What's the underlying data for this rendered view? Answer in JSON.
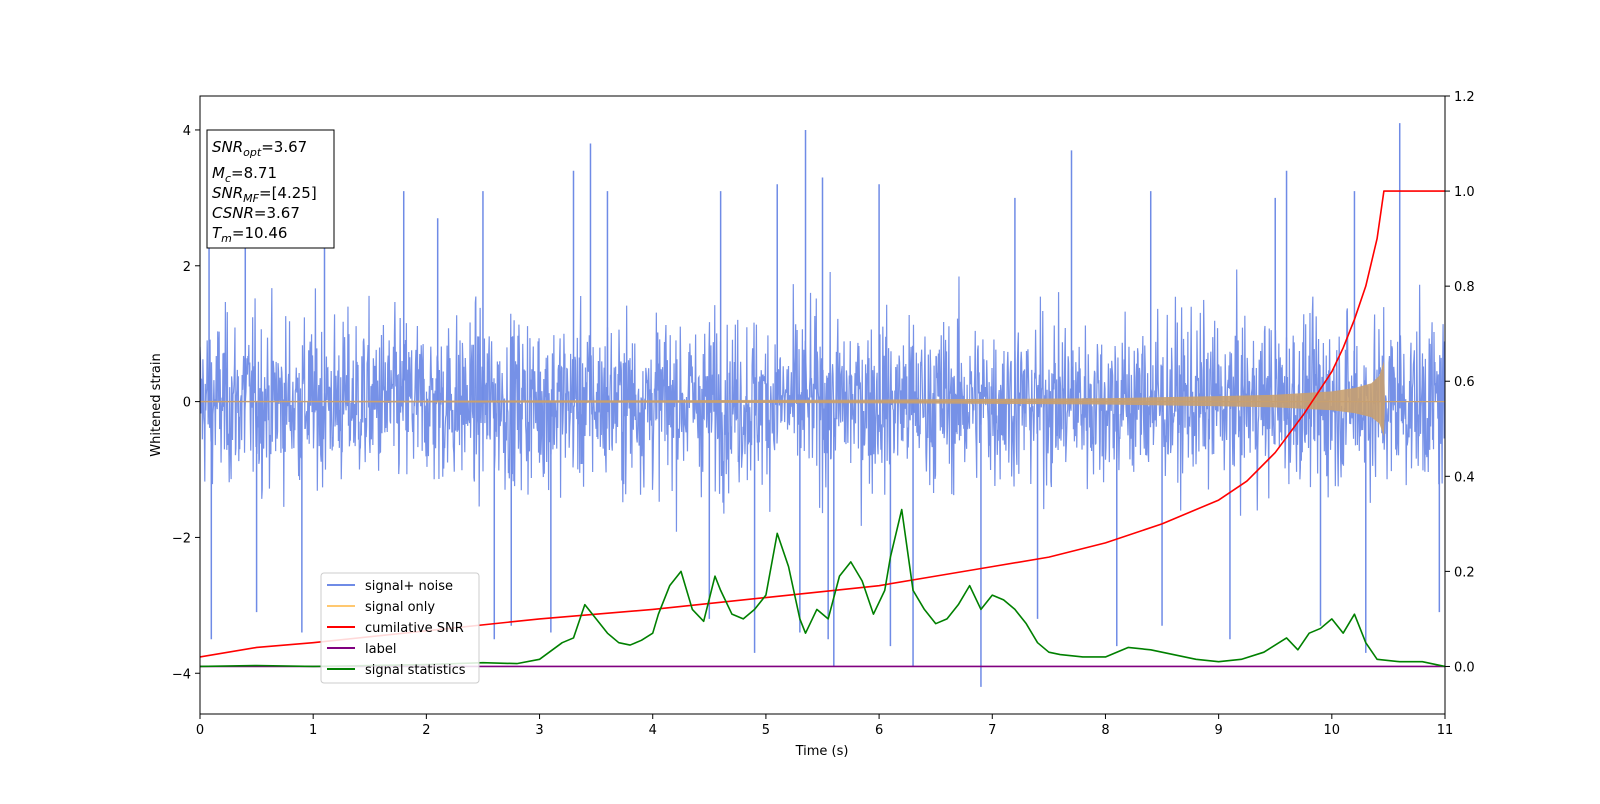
{
  "chart_data": {
    "type": "line",
    "title": "",
    "xlabel": "Time (s)",
    "ylabel": "Whitened strain",
    "y2label": "",
    "xlim": [
      0,
      11
    ],
    "ylim": [
      -4.6,
      4.5
    ],
    "y2lim": [
      -0.1,
      1.2
    ],
    "x_ticks": [
      0,
      1,
      2,
      3,
      4,
      5,
      6,
      7,
      8,
      9,
      10,
      11
    ],
    "y_ticks": [
      -4,
      -2,
      0,
      2,
      4
    ],
    "y2_ticks": [
      0.0,
      0.2,
      0.4,
      0.6,
      0.8,
      1.0,
      1.2
    ],
    "x_tick_labels": [
      "0",
      "1",
      "2",
      "3",
      "4",
      "5",
      "6",
      "7",
      "8",
      "9",
      "10",
      "11"
    ],
    "y_tick_labels": [
      "−4",
      "−2",
      "0",
      "2",
      "4"
    ],
    "y2_tick_labels": [
      "0.0",
      "0.2",
      "0.4",
      "0.6",
      "0.8",
      "1.0",
      "1.2"
    ],
    "grid": false,
    "legend_position": "lower-left",
    "colors": {
      "signal_noise": "#6f8be6",
      "signal_only": "#c8a070",
      "cumulative_snr": "#ff0000",
      "label": "#800080",
      "signal_statistics": "#008000"
    },
    "stats_box": {
      "snr_opt": {
        "main": "SNR",
        "sub": "opt",
        "value": "=3.67"
      },
      "mc": {
        "main": "M",
        "sub": "c",
        "value": "=8.71"
      },
      "snr_mf": {
        "main": "SNR",
        "sub": "MF",
        "value": "=[4.25]"
      },
      "csnr": {
        "main": "CSNR",
        "value": "=3.67"
      },
      "tm": {
        "main": "T",
        "sub": "m",
        "value": "=10.46"
      }
    },
    "series": [
      {
        "name": "signal+ noise",
        "axis": "left",
        "kind": "noise-band",
        "band_sd": 1.1,
        "spikes": [
          [
            0.08,
            2.5
          ],
          [
            0.1,
            -3.5
          ],
          [
            0.4,
            2.6
          ],
          [
            0.5,
            -3.1
          ],
          [
            0.9,
            -3.4
          ],
          [
            1.1,
            3.0
          ],
          [
            1.8,
            3.1
          ],
          [
            2.1,
            2.7
          ],
          [
            2.5,
            3.1
          ],
          [
            2.6,
            -3.5
          ],
          [
            2.75,
            -3.3
          ],
          [
            3.1,
            -3.4
          ],
          [
            3.3,
            3.4
          ],
          [
            3.45,
            3.8
          ],
          [
            3.6,
            3.1
          ],
          [
            4.5,
            -3.2
          ],
          [
            4.6,
            3.1
          ],
          [
            4.9,
            -3.7
          ],
          [
            5.1,
            3.2
          ],
          [
            5.3,
            -3.4
          ],
          [
            5.35,
            4.0
          ],
          [
            5.5,
            3.3
          ],
          [
            5.55,
            -3.5
          ],
          [
            5.6,
            -3.9
          ],
          [
            6.0,
            3.2
          ],
          [
            6.1,
            -3.6
          ],
          [
            6.3,
            -3.9
          ],
          [
            6.9,
            -4.2
          ],
          [
            7.2,
            3.0
          ],
          [
            7.4,
            -3.2
          ],
          [
            7.7,
            3.7
          ],
          [
            8.1,
            -3.6
          ],
          [
            8.4,
            3.1
          ],
          [
            8.5,
            -3.3
          ],
          [
            9.1,
            -3.5
          ],
          [
            9.5,
            3.0
          ],
          [
            9.6,
            3.4
          ],
          [
            9.9,
            -3.3
          ],
          [
            10.2,
            3.1
          ],
          [
            10.3,
            -3.7
          ],
          [
            10.6,
            4.1
          ],
          [
            10.95,
            -3.1
          ]
        ]
      },
      {
        "name": "signal only",
        "axis": "left",
        "kind": "chirp-envelope",
        "x": [
          0,
          1,
          2,
          3,
          4,
          5,
          6,
          7,
          8,
          9,
          9.5,
          10,
          10.2,
          10.35,
          10.42,
          10.46,
          10.47,
          11
        ],
        "amplitude": [
          0.01,
          0.01,
          0.015,
          0.02,
          0.02,
          0.025,
          0.03,
          0.04,
          0.05,
          0.08,
          0.1,
          0.15,
          0.2,
          0.27,
          0.38,
          0.6,
          0.0,
          0.0
        ]
      },
      {
        "name": "cumilative SNR",
        "axis": "right",
        "x": [
          0,
          0.5,
          1,
          2,
          3,
          4,
          5,
          6,
          6.5,
          7,
          7.5,
          8,
          8.5,
          9,
          9.25,
          9.5,
          9.75,
          10,
          10.1,
          10.2,
          10.3,
          10.35,
          10.4,
          10.43,
          10.46,
          11
        ],
        "values": [
          0.02,
          0.04,
          0.05,
          0.075,
          0.1,
          0.12,
          0.145,
          0.17,
          0.19,
          0.21,
          0.23,
          0.26,
          0.3,
          0.35,
          0.39,
          0.45,
          0.53,
          0.62,
          0.67,
          0.73,
          0.8,
          0.85,
          0.9,
          0.95,
          1.0,
          1.0
        ]
      },
      {
        "name": "label",
        "axis": "right",
        "x": [
          0,
          11
        ],
        "values": [
          0.0,
          0.0
        ]
      },
      {
        "name": "signal statistics",
        "axis": "right",
        "x": [
          0,
          0.5,
          1,
          1.5,
          2,
          2.5,
          2.8,
          3,
          3.2,
          3.3,
          3.4,
          3.5,
          3.6,
          3.7,
          3.8,
          3.9,
          4.0,
          4.05,
          4.15,
          4.25,
          4.35,
          4.45,
          4.55,
          4.6,
          4.7,
          4.8,
          4.9,
          5.0,
          5.1,
          5.2,
          5.3,
          5.35,
          5.45,
          5.55,
          5.65,
          5.75,
          5.85,
          5.95,
          6.05,
          6.1,
          6.2,
          6.3,
          6.4,
          6.5,
          6.6,
          6.7,
          6.8,
          6.9,
          7.0,
          7.1,
          7.2,
          7.3,
          7.4,
          7.5,
          7.6,
          7.8,
          8.0,
          8.2,
          8.4,
          8.6,
          8.8,
          9.0,
          9.2,
          9.4,
          9.6,
          9.7,
          9.8,
          9.9,
          10.0,
          10.1,
          10.2,
          10.3,
          10.4,
          10.6,
          10.8,
          11.0
        ],
        "values": [
          0.0,
          0.002,
          0.0,
          0.002,
          0.004,
          0.008,
          0.006,
          0.015,
          0.05,
          0.06,
          0.13,
          0.1,
          0.07,
          0.05,
          0.045,
          0.055,
          0.07,
          0.11,
          0.17,
          0.2,
          0.12,
          0.095,
          0.19,
          0.16,
          0.11,
          0.1,
          0.12,
          0.15,
          0.28,
          0.21,
          0.1,
          0.07,
          0.12,
          0.1,
          0.19,
          0.22,
          0.18,
          0.11,
          0.16,
          0.23,
          0.33,
          0.16,
          0.12,
          0.09,
          0.1,
          0.13,
          0.17,
          0.12,
          0.15,
          0.14,
          0.12,
          0.09,
          0.05,
          0.03,
          0.025,
          0.02,
          0.02,
          0.04,
          0.035,
          0.025,
          0.015,
          0.01,
          0.015,
          0.03,
          0.06,
          0.035,
          0.07,
          0.08,
          0.1,
          0.07,
          0.11,
          0.05,
          0.015,
          0.01,
          0.01,
          0.0
        ]
      }
    ]
  }
}
